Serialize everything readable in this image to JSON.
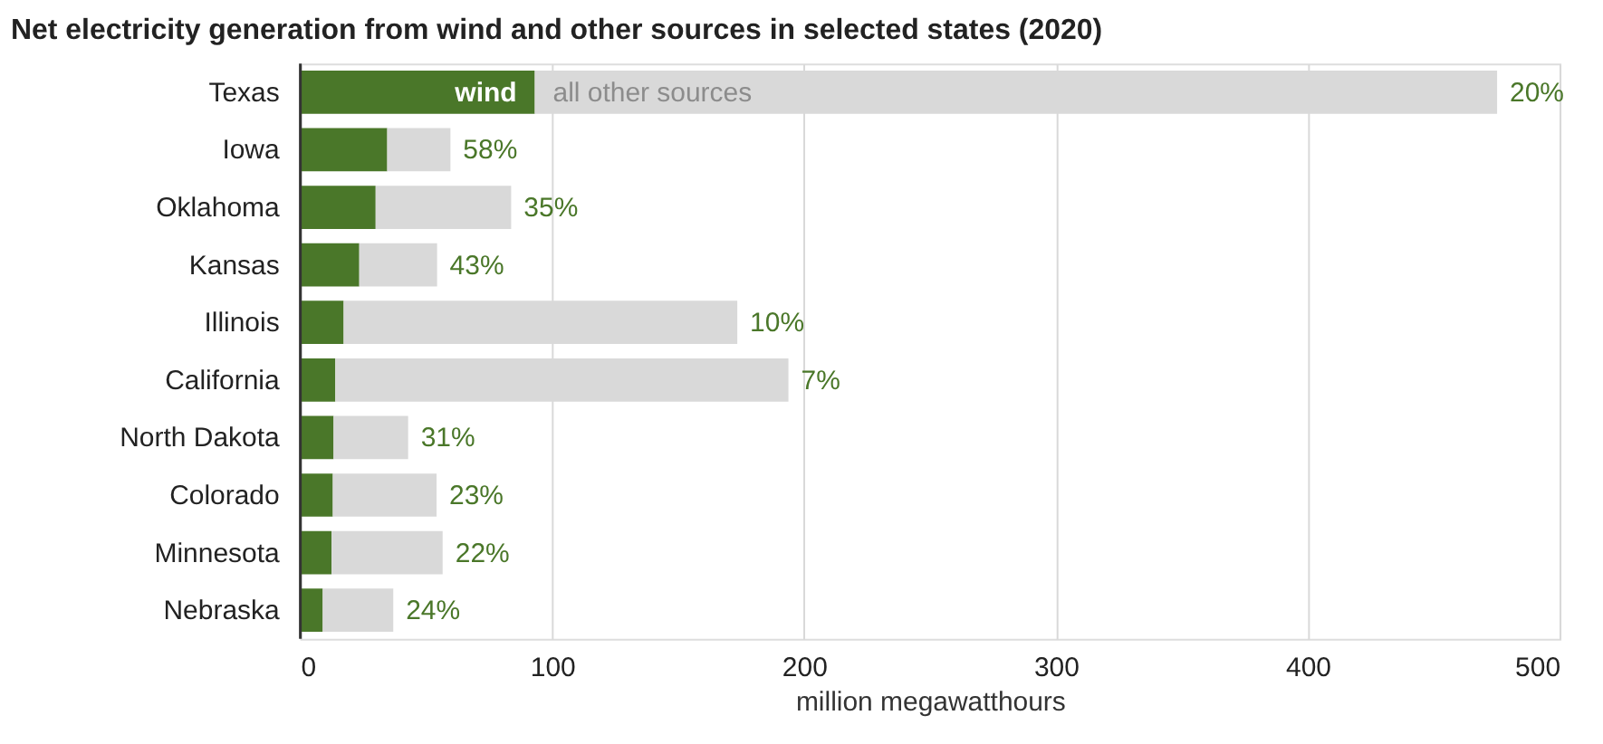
{
  "chart_data": {
    "type": "bar",
    "orientation": "horizontal",
    "stacked": true,
    "title": "Net electricity generation from wind and other sources in selected states (2020)",
    "xlabel": "million megawatthours",
    "categories": [
      "Texas",
      "Iowa",
      "Oklahoma",
      "Kansas",
      "Illinois",
      "California",
      "North Dakota",
      "Colorado",
      "Minnesota",
      "Nebraska"
    ],
    "series": [
      {
        "name": "wind",
        "color": "#4a7729",
        "values": [
          93.1,
          34.5,
          29.9,
          23.4,
          17.2,
          13.9,
          13.2,
          12.9,
          12.4,
          8.9
        ]
      },
      {
        "name": "all other sources",
        "color": "#d9d9d9",
        "values": [
          382.1,
          25.1,
          53.8,
          30.9,
          156.3,
          179.9,
          29.6,
          41.2,
          44.1,
          28.0
        ]
      }
    ],
    "annotations": [
      {
        "text": "20%",
        "x": 475.2,
        "y": "Texas"
      },
      {
        "text": "58%",
        "x": 59.6,
        "y": "Iowa"
      },
      {
        "text": "35%",
        "x": 83.7,
        "y": "Oklahoma"
      },
      {
        "text": "43%",
        "x": 54.3,
        "y": "Kansas"
      },
      {
        "text": "10%",
        "x": 173.5,
        "y": "Illinois"
      },
      {
        "text": "7%",
        "x": 193.8,
        "y": "California"
      },
      {
        "text": "31%",
        "x": 42.8,
        "y": "North Dakota"
      },
      {
        "text": "23%",
        "x": 54.1,
        "y": "Colorado"
      },
      {
        "text": "22%",
        "x": 56.5,
        "y": "Minnesota"
      },
      {
        "text": "24%",
        "x": 36.9,
        "y": "Nebraska"
      }
    ],
    "xlim": [
      0,
      500
    ],
    "xticks": [
      0,
      100,
      200,
      300,
      400,
      500
    ],
    "grid": "x",
    "legend": false
  }
}
